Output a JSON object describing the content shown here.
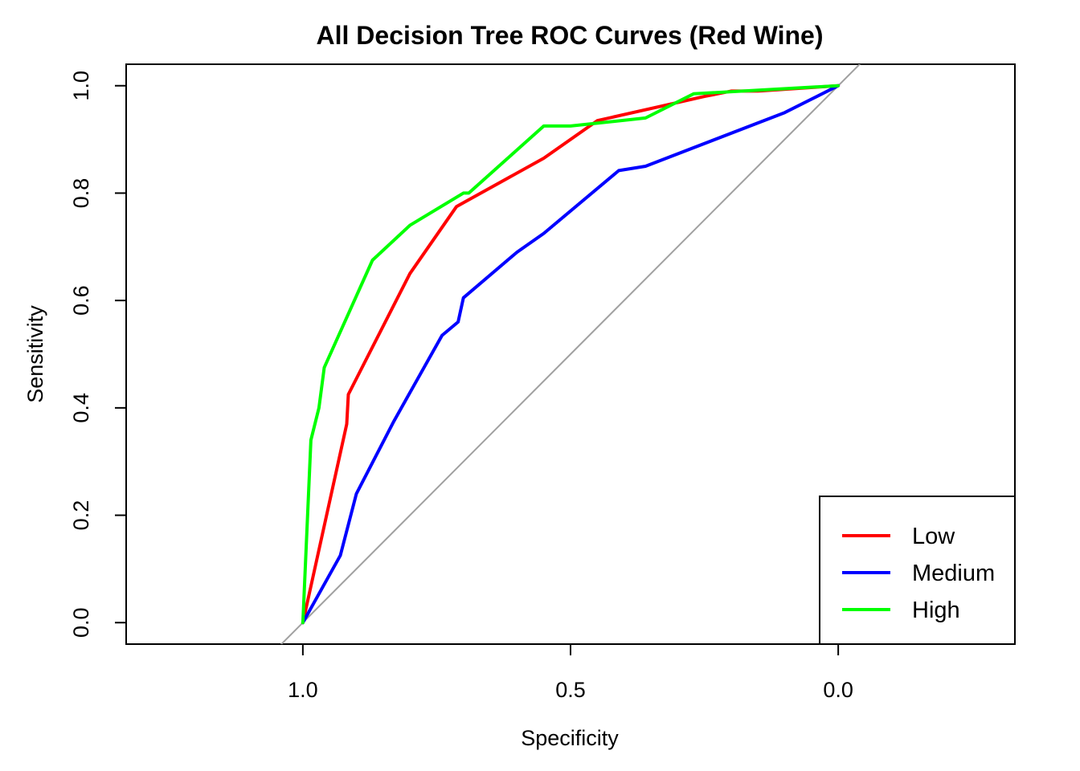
{
  "chart_data": {
    "type": "line",
    "title": "All Decision Tree ROC Curves (Red Wine)",
    "xlabel": "Specificity",
    "ylabel": "Sensitivity",
    "xlim": [
      1.33,
      -0.33
    ],
    "ylim": [
      -0.04,
      1.04
    ],
    "x_ticks": [
      1.0,
      0.5,
      0.0
    ],
    "x_tick_labels": [
      "1.0",
      "0.5",
      "0.0"
    ],
    "y_ticks": [
      0.0,
      0.2,
      0.4,
      0.6,
      0.8,
      1.0
    ],
    "y_tick_labels": [
      "0.0",
      "0.2",
      "0.4",
      "0.6",
      "0.8",
      "1.0"
    ],
    "x_reversed": true,
    "grid": false,
    "legend_position": "bottom-right",
    "reference_line": {
      "from": [
        1.0,
        0.0
      ],
      "to": [
        0.0,
        1.0
      ],
      "color": "#a0a0a0"
    },
    "series": [
      {
        "name": "Low",
        "color": "#ff0000",
        "points": [
          [
            1.0,
            0.0
          ],
          [
            0.918,
            0.37
          ],
          [
            0.915,
            0.425
          ],
          [
            0.8,
            0.65
          ],
          [
            0.713,
            0.775
          ],
          [
            0.55,
            0.865
          ],
          [
            0.45,
            0.935
          ],
          [
            0.25,
            0.98
          ],
          [
            0.2,
            0.99
          ],
          [
            0.15,
            0.99
          ],
          [
            0.0,
            1.0
          ]
        ]
      },
      {
        "name": "Medium",
        "color": "#0000ff",
        "points": [
          [
            1.0,
            0.0
          ],
          [
            0.93,
            0.125
          ],
          [
            0.9,
            0.24
          ],
          [
            0.83,
            0.375
          ],
          [
            0.74,
            0.535
          ],
          [
            0.71,
            0.56
          ],
          [
            0.7,
            0.605
          ],
          [
            0.6,
            0.69
          ],
          [
            0.55,
            0.725
          ],
          [
            0.41,
            0.842
          ],
          [
            0.36,
            0.85
          ],
          [
            0.1,
            0.95
          ],
          [
            0.0,
            1.0
          ]
        ]
      },
      {
        "name": "High",
        "color": "#00ff00",
        "points": [
          [
            1.0,
            0.0
          ],
          [
            0.985,
            0.34
          ],
          [
            0.97,
            0.4
          ],
          [
            0.96,
            0.475
          ],
          [
            0.87,
            0.675
          ],
          [
            0.8,
            0.74
          ],
          [
            0.7,
            0.8
          ],
          [
            0.69,
            0.8
          ],
          [
            0.55,
            0.925
          ],
          [
            0.5,
            0.925
          ],
          [
            0.36,
            0.94
          ],
          [
            0.27,
            0.985
          ],
          [
            0.0,
            1.0
          ]
        ]
      }
    ]
  }
}
